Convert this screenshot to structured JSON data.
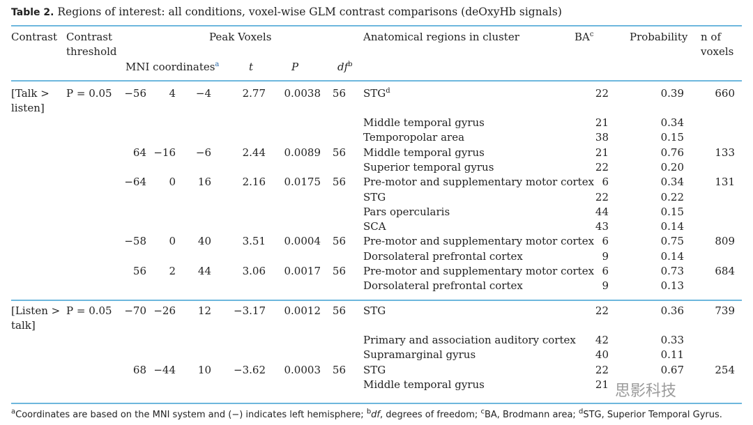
{
  "caption": {
    "label": "Table 2.",
    "title": "Regions of interest: all conditions, voxel-wise GLM contrast comparisons (deOxyHb signals)"
  },
  "headers": {
    "contrast": "Contrast",
    "threshold_1": "Contrast",
    "threshold_2": "threshold",
    "peak_voxels": "Peak Voxels",
    "mni": "MNI coordinates",
    "mni_sup": "a",
    "t": "t",
    "p": "P",
    "df": "df",
    "df_sup": "b",
    "regions": "Anatomical regions in cluster",
    "ba": "BA",
    "ba_sup": "c",
    "probability": "Probability",
    "nvox_1": "n of",
    "nvox_2": "voxels"
  },
  "groups": [
    {
      "contrast_1": "[Talk >",
      "contrast_2": "listen]",
      "threshold": "P = 0.05",
      "rows": [
        {
          "x": "−56",
          "y": "4",
          "z": "−4",
          "t": "2.77",
          "p": "0.0038",
          "df": "56",
          "region": "STG",
          "region_sup": "d",
          "ba": "22",
          "prob": "0.39",
          "n": "660"
        },
        {
          "x": "",
          "y": "",
          "z": "",
          "t": "",
          "p": "",
          "df": "",
          "region": "Middle temporal gyrus",
          "region_sup": "",
          "ba": "21",
          "prob": "0.34",
          "n": ""
        },
        {
          "x": "",
          "y": "",
          "z": "",
          "t": "",
          "p": "",
          "df": "",
          "region": "Temporopolar area",
          "region_sup": "",
          "ba": "38",
          "prob": "0.15",
          "n": ""
        },
        {
          "x": "64",
          "y": "−16",
          "z": "−6",
          "t": "2.44",
          "p": "0.0089",
          "df": "56",
          "region": "Middle temporal gyrus",
          "region_sup": "",
          "ba": "21",
          "prob": "0.76",
          "n": "133"
        },
        {
          "x": "",
          "y": "",
          "z": "",
          "t": "",
          "p": "",
          "df": "",
          "region": "Superior temporal gyrus",
          "region_sup": "",
          "ba": "22",
          "prob": "0.20",
          "n": ""
        },
        {
          "x": "−64",
          "y": "0",
          "z": "16",
          "t": "2.16",
          "p": "0.0175",
          "df": "56",
          "region": "Pre-motor and supplementary motor cortex",
          "region_sup": "",
          "ba": "6",
          "prob": "0.34",
          "n": "131"
        },
        {
          "x": "",
          "y": "",
          "z": "",
          "t": "",
          "p": "",
          "df": "",
          "region": "STG",
          "region_sup": "",
          "ba": "22",
          "prob": "0.22",
          "n": ""
        },
        {
          "x": "",
          "y": "",
          "z": "",
          "t": "",
          "p": "",
          "df": "",
          "region": "Pars opercularis",
          "region_sup": "",
          "ba": "44",
          "prob": "0.15",
          "n": ""
        },
        {
          "x": "",
          "y": "",
          "z": "",
          "t": "",
          "p": "",
          "df": "",
          "region": "SCA",
          "region_sup": "",
          "ba": "43",
          "prob": "0.14",
          "n": ""
        },
        {
          "x": "−58",
          "y": "0",
          "z": "40",
          "t": "3.51",
          "p": "0.0004",
          "df": "56",
          "region": "Pre-motor and supplementary motor cortex",
          "region_sup": "",
          "ba": "6",
          "prob": "0.75",
          "n": "809"
        },
        {
          "x": "",
          "y": "",
          "z": "",
          "t": "",
          "p": "",
          "df": "",
          "region": "Dorsolateral prefrontal cortex",
          "region_sup": "",
          "ba": "9",
          "prob": "0.14",
          "n": ""
        },
        {
          "x": "56",
          "y": "2",
          "z": "44",
          "t": "3.06",
          "p": "0.0017",
          "df": "56",
          "region": "Pre-motor and supplementary motor cortex",
          "region_sup": "",
          "ba": "6",
          "prob": "0.73",
          "n": "684"
        },
        {
          "x": "",
          "y": "",
          "z": "",
          "t": "",
          "p": "",
          "df": "",
          "region": "Dorsolateral prefrontal cortex",
          "region_sup": "",
          "ba": "9",
          "prob": "0.13",
          "n": ""
        }
      ]
    },
    {
      "contrast_1": "[Listen >",
      "contrast_2": "talk]",
      "threshold": "P = 0.05",
      "rows": [
        {
          "x": "−70",
          "y": "−26",
          "z": "12",
          "t": "−3.17",
          "p": "0.0012",
          "df": "56",
          "region": "STG",
          "region_sup": "",
          "ba": "22",
          "prob": "0.36",
          "n": "739"
        },
        {
          "x": "",
          "y": "",
          "z": "",
          "t": "",
          "p": "",
          "df": "",
          "region": "Primary and association auditory cortex",
          "region_sup": "",
          "ba": "42",
          "prob": "0.33",
          "n": ""
        },
        {
          "x": "",
          "y": "",
          "z": "",
          "t": "",
          "p": "",
          "df": "",
          "region": "Supramarginal gyrus",
          "region_sup": "",
          "ba": "40",
          "prob": "0.11",
          "n": ""
        },
        {
          "x": "68",
          "y": "−44",
          "z": "10",
          "t": "−3.62",
          "p": "0.0003",
          "df": "56",
          "region": "STG",
          "region_sup": "",
          "ba": "22",
          "prob": "0.67",
          "n": "254"
        },
        {
          "x": "",
          "y": "",
          "z": "",
          "t": "",
          "p": "",
          "df": "",
          "region": "Middle temporal gyrus",
          "region_sup": "",
          "ba": "21",
          "prob": "",
          "n": ""
        }
      ]
    }
  ],
  "footnote": {
    "a_sup": "a",
    "a": "Coordinates are based on the MNI system and (−) indicates left hemisphere;",
    "b_sup": "b",
    "b_term": "df",
    "b": ", degrees of freedom;",
    "c_sup": "c",
    "c": "BA, Brodmann area;",
    "d_sup": "d",
    "d": "STG, Superior Temporal Gyrus."
  },
  "watermark": "思影科技",
  "colors": {
    "rule": "#6db7dd",
    "text": "#222222"
  }
}
